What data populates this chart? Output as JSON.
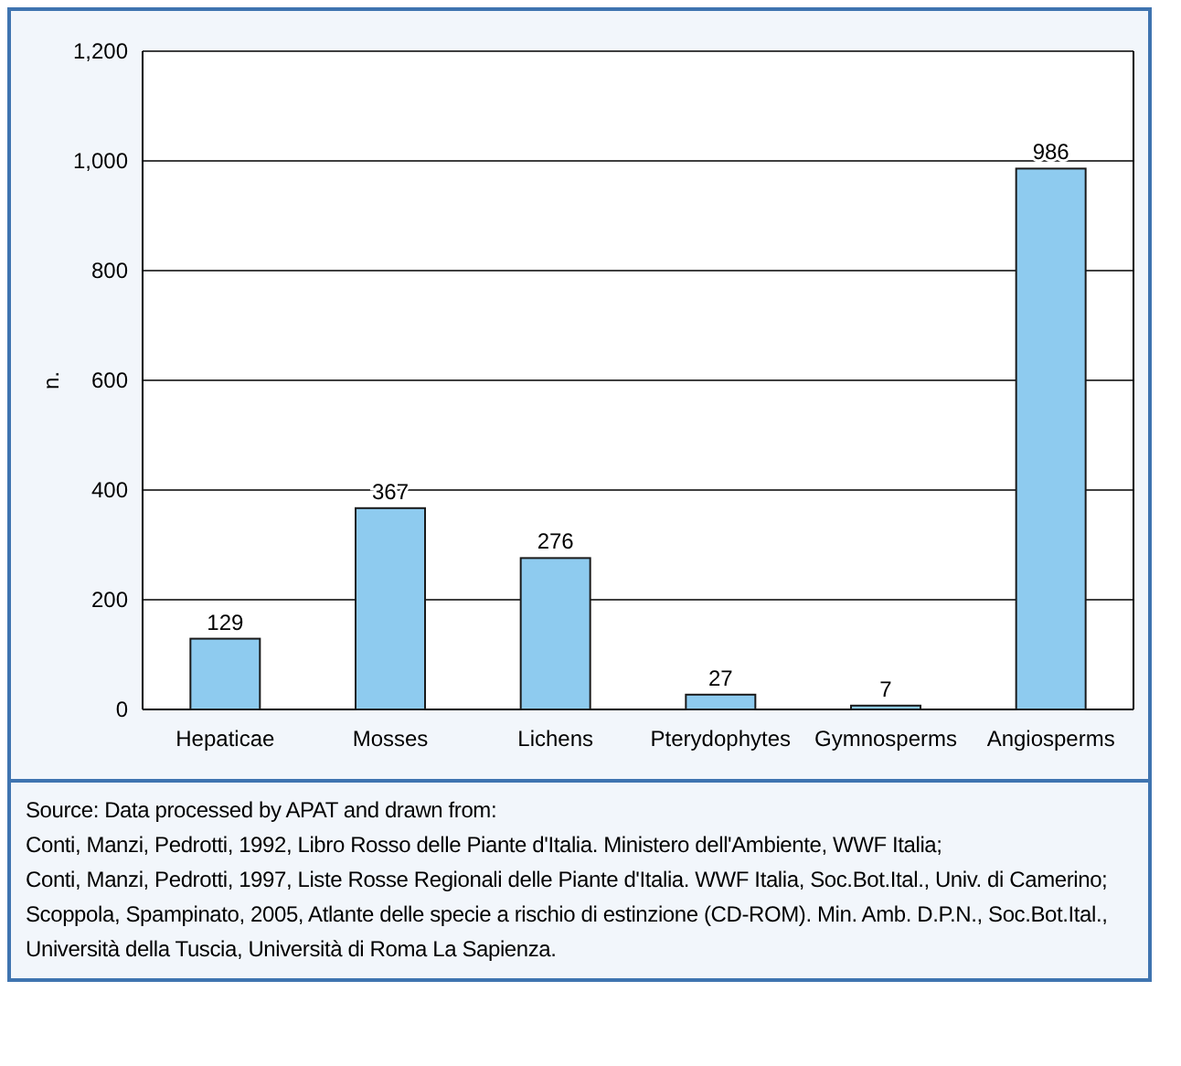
{
  "chart_data": {
    "type": "bar",
    "ylabel": "n.",
    "categories": [
      "Hepaticae",
      "Mosses",
      "Lichens",
      "Pterydophytes",
      "Gymnosperms",
      "Angiosperms"
    ],
    "values": [
      129,
      367,
      276,
      27,
      7,
      986
    ],
    "color": "#8ecbef",
    "ylim": [
      0,
      1200
    ],
    "yticks": [
      0,
      {
        "value": 200,
        "label": "200"
      },
      {
        "value": 400,
        "label": "400"
      },
      {
        "value": 600,
        "label": "600"
      },
      {
        "value": 800,
        "label": "800"
      },
      {
        "value": 1000,
        "label": "1,000"
      },
      {
        "value": 1200,
        "label": "1,200"
      }
    ],
    "grid": "y",
    "data_labels": true,
    "annotations": [
      "Source: Data processed by APAT and drawn from:",
      "Conti, Manzi, Pedrotti, 1992, Libro Rosso delle Piante d'Italia. Ministero dell'Ambiente, WWF Italia;",
      "Conti, Manzi, Pedrotti, 1997, Liste Rosse Regionali delle Piante d'Italia. WWF Italia, Soc.Bot.Ital., Univ. di Camerino;",
      "Scoppola, Spampinato, 2005, Atlante delle specie a rischio di estinzione (CD-ROM). Min. Amb. D.P.N., Soc.Bot.Ital., Università della Tuscia, Università di Roma La Sapienza."
    ]
  }
}
